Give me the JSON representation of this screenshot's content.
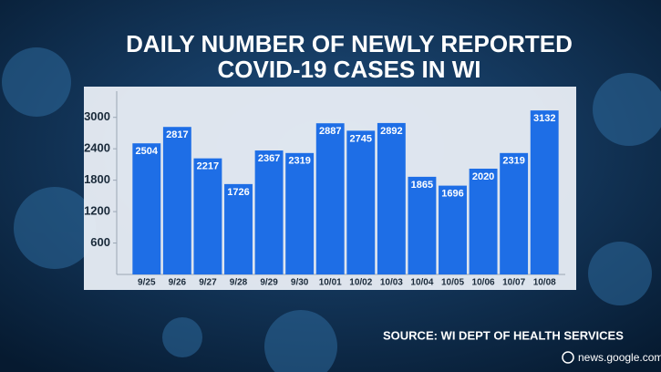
{
  "chart_data": {
    "type": "bar",
    "title": [
      "DAILY NUMBER OF NEWLY REPORTED",
      "COVID-19 CASES IN WI"
    ],
    "categories": [
      "9/25",
      "9/26",
      "9/27",
      "9/28",
      "9/29",
      "9/30",
      "10/01",
      "10/02",
      "10/03",
      "10/04",
      "10/05",
      "10/06",
      "10/07",
      "10/08"
    ],
    "values": [
      2504,
      2817,
      2217,
      1726,
      2367,
      2319,
      2887,
      2745,
      2892,
      1865,
      1696,
      2020,
      2319,
      3132
    ],
    "color": "#1e6ee6",
    "ylim": [
      0,
      3500
    ],
    "yticks": [
      600,
      1200,
      1800,
      2400,
      3000
    ],
    "grid": false,
    "source": "SOURCE: WI DEPT OF HEALTH SERVICES"
  },
  "watermark": "news.google.com"
}
